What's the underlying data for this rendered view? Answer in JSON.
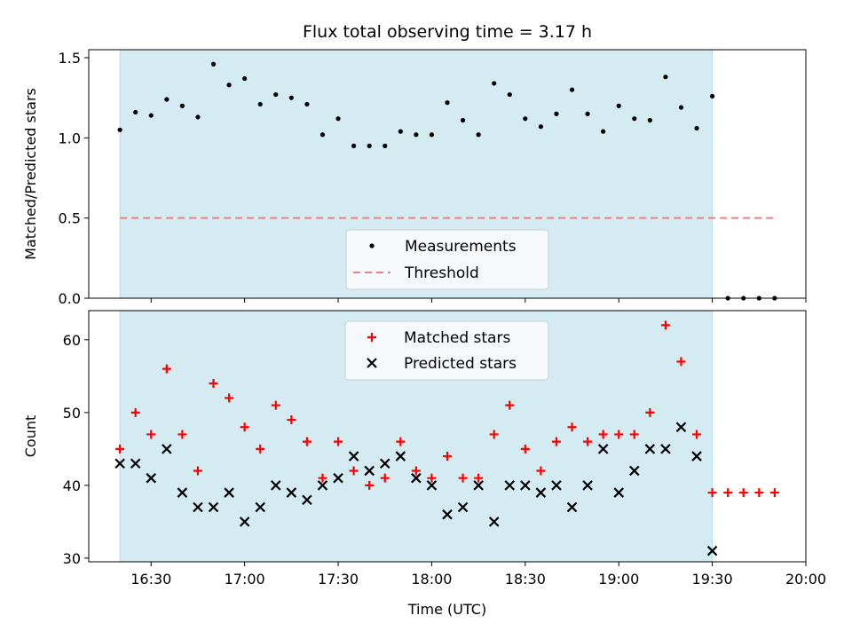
{
  "chart_data": [
    {
      "type": "scatter",
      "title": "Flux total observing time = 3.17 h",
      "ylabel": "Matched/Predicted stars",
      "xlabel": "",
      "x_unit": "time of day (UTC)",
      "ylim": [
        0,
        1.55
      ],
      "yticks": [
        "0.0",
        "0.5",
        "1.0",
        "1.5"
      ],
      "shaded_span": [
        "16:20",
        "19:30"
      ],
      "shade_color": "#d4ebf2",
      "legend": {
        "placement": "lower-center",
        "entries": [
          "Measurements",
          "Threshold"
        ]
      },
      "series": [
        {
          "name": "Measurements",
          "marker": "dot",
          "color": "#000000",
          "x": [
            "16:20",
            "16:25",
            "16:30",
            "16:35",
            "16:40",
            "16:45",
            "16:50",
            "16:55",
            "17:00",
            "17:05",
            "17:10",
            "17:15",
            "17:20",
            "17:25",
            "17:30",
            "17:35",
            "17:40",
            "17:45",
            "17:50",
            "17:55",
            "18:00",
            "18:05",
            "18:10",
            "18:15",
            "18:20",
            "18:25",
            "18:30",
            "18:35",
            "18:40",
            "18:45",
            "18:50",
            "18:55",
            "19:00",
            "19:05",
            "19:10",
            "19:15",
            "19:20",
            "19:25",
            "19:30",
            "19:35",
            "19:40",
            "19:45",
            "19:50"
          ],
          "y": [
            1.05,
            1.16,
            1.14,
            1.24,
            1.2,
            1.13,
            1.46,
            1.33,
            1.37,
            1.21,
            1.27,
            1.25,
            1.21,
            1.02,
            1.12,
            0.95,
            0.95,
            0.95,
            1.04,
            1.02,
            1.02,
            1.22,
            1.11,
            1.02,
            1.34,
            1.27,
            1.12,
            1.07,
            1.15,
            1.3,
            1.15,
            1.04,
            1.2,
            1.12,
            1.11,
            1.38,
            1.19,
            1.06,
            1.26,
            0,
            0,
            0,
            0
          ]
        },
        {
          "name": "Threshold",
          "style": "dashed",
          "color": "#f08080",
          "x": [
            "16:20",
            "19:50"
          ],
          "y": [
            0.5,
            0.5
          ]
        }
      ]
    },
    {
      "type": "scatter",
      "title": "",
      "ylabel": "Count",
      "xlabel": "Time (UTC)",
      "ylim": [
        29.5,
        64
      ],
      "yticks": [
        "30",
        "40",
        "50",
        "60"
      ],
      "xticks": [
        "16:30",
        "17:00",
        "17:30",
        "18:00",
        "18:30",
        "19:00",
        "19:30",
        "20:00"
      ],
      "xlim": [
        "16:10",
        "20:00"
      ],
      "shaded_span": [
        "16:20",
        "19:30"
      ],
      "legend": {
        "placement": "upper-center",
        "entries": [
          "Matched stars",
          "Predicted stars"
        ]
      },
      "series": [
        {
          "name": "Matched stars",
          "marker": "plus",
          "color": "#ff0000",
          "x": [
            "16:20",
            "16:25",
            "16:30",
            "16:35",
            "16:40",
            "16:45",
            "16:50",
            "16:55",
            "17:00",
            "17:05",
            "17:10",
            "17:15",
            "17:20",
            "17:25",
            "17:30",
            "17:35",
            "17:40",
            "17:45",
            "17:50",
            "17:55",
            "18:00",
            "18:05",
            "18:10",
            "18:15",
            "18:20",
            "18:25",
            "18:30",
            "18:35",
            "18:40",
            "18:45",
            "18:50",
            "18:55",
            "19:00",
            "19:05",
            "19:10",
            "19:15",
            "19:20",
            "19:25",
            "19:30",
            "19:35",
            "19:40",
            "19:45",
            "19:50"
          ],
          "y": [
            45,
            50,
            47,
            56,
            47,
            42,
            54,
            52,
            48,
            45,
            51,
            49,
            46,
            41,
            46,
            42,
            40,
            41,
            46,
            42,
            41,
            44,
            41,
            41,
            47,
            51,
            45,
            42,
            46,
            48,
            46,
            47,
            47,
            47,
            50,
            62,
            57,
            47,
            39,
            39,
            39,
            39,
            39
          ]
        },
        {
          "name": "Predicted stars",
          "marker": "x",
          "color": "#000000",
          "x": [
            "16:20",
            "16:25",
            "16:30",
            "16:35",
            "16:40",
            "16:45",
            "16:50",
            "16:55",
            "17:00",
            "17:05",
            "17:10",
            "17:15",
            "17:20",
            "17:25",
            "17:30",
            "17:35",
            "17:40",
            "17:45",
            "17:50",
            "17:55",
            "18:00",
            "18:05",
            "18:10",
            "18:15",
            "18:20",
            "18:25",
            "18:30",
            "18:35",
            "18:40",
            "18:45",
            "18:50",
            "18:55",
            "19:00",
            "19:05",
            "19:10",
            "19:15",
            "19:20",
            "19:25",
            "19:30"
          ],
          "y": [
            43,
            43,
            41,
            45,
            39,
            37,
            37,
            39,
            35,
            37,
            40,
            39,
            38,
            40,
            41,
            44,
            42,
            43,
            44,
            41,
            40,
            36,
            37,
            40,
            35,
            40,
            40,
            39,
            40,
            37,
            40,
            45,
            39,
            42,
            45,
            45,
            48,
            44,
            31
          ]
        }
      ]
    }
  ]
}
